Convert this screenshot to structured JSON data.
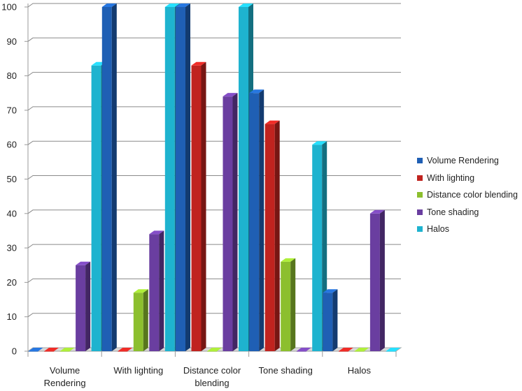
{
  "chart_data": {
    "type": "bar",
    "categories": [
      "Volume Rendering",
      "With lighting",
      "Distance color blending",
      "Tone shading",
      "Halos"
    ],
    "category_labels": [
      [
        "Volume",
        "Rendering"
      ],
      [
        "With lighting"
      ],
      [
        "Distance color",
        "blending"
      ],
      [
        "Tone shading"
      ],
      [
        "Halos"
      ]
    ],
    "series": [
      {
        "name": "Volume Rendering",
        "color": "#1f5fb4",
        "values": [
          0,
          100,
          100,
          75,
          17
        ]
      },
      {
        "name": "With lighting",
        "color": "#c0231f",
        "values": [
          0,
          0,
          83,
          66,
          0
        ]
      },
      {
        "name": "Distance color blending",
        "color": "#8cbf2e",
        "values": [
          0,
          17,
          0,
          26,
          0
        ]
      },
      {
        "name": "Tone shading",
        "color": "#6a3ea0",
        "values": [
          25,
          34,
          74,
          0,
          40
        ]
      },
      {
        "name": "Halos",
        "color": "#1eb3cf",
        "values": [
          83,
          100,
          100,
          60,
          0
        ]
      }
    ],
    "yticks": [
      "0",
      "10",
      "20",
      "30",
      "40",
      "50",
      "60",
      "70",
      "80",
      "90",
      "100"
    ],
    "ylim": [
      0,
      100
    ],
    "grid": true,
    "legend_position": "right",
    "title": "",
    "xlabel": "",
    "ylabel": ""
  }
}
